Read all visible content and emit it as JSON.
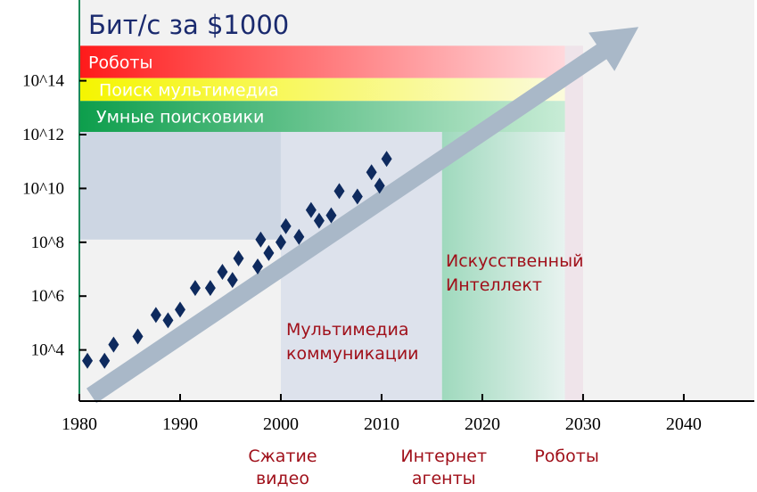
{
  "chart_data": {
    "type": "scatter",
    "title": "Бит/с за $1000",
    "xlabel": "",
    "ylabel": "",
    "x_ticks": [
      "1980",
      "1990",
      "2000",
      "2010",
      "2020",
      "2030",
      "2040"
    ],
    "y_ticks": [
      "10^4",
      "10^6",
      "10^8",
      "10^10",
      "10^12",
      "10^14"
    ],
    "xlim": [
      1980,
      2047
    ],
    "ylim_log10": [
      2.1,
      17.0
    ],
    "log_scale_y": true,
    "grid": false,
    "series": [
      {
        "points_log10": [
          [
            1980.8,
            3.6
          ],
          [
            1982.5,
            3.6
          ],
          [
            1983.4,
            4.2
          ],
          [
            1985.8,
            4.5
          ],
          [
            1987.6,
            5.3
          ],
          [
            1988.8,
            5.1
          ],
          [
            1990.0,
            5.5
          ],
          [
            1991.5,
            6.3
          ],
          [
            1993.0,
            6.3
          ],
          [
            1994.2,
            6.9
          ],
          [
            1995.2,
            6.6
          ],
          [
            1995.8,
            7.4
          ],
          [
            1997.7,
            7.1
          ],
          [
            1998.0,
            8.1
          ],
          [
            1998.8,
            7.6
          ],
          [
            2000.0,
            8.0
          ],
          [
            2000.5,
            8.6
          ],
          [
            2001.8,
            8.2
          ],
          [
            2003.0,
            9.2
          ],
          [
            2003.8,
            8.8
          ],
          [
            2005.0,
            9.0
          ],
          [
            2005.8,
            9.9
          ],
          [
            2007.6,
            9.7
          ],
          [
            2009.0,
            10.6
          ],
          [
            2009.8,
            10.1
          ],
          [
            2010.5,
            11.1
          ]
        ]
      }
    ],
    "trend_arrow": {
      "from": [
        1981.2,
        2.3
      ],
      "to": [
        2035.5,
        16.0
      ]
    },
    "bands": [
      {
        "label": "Роботы",
        "y_log10": [
          14.1,
          15.3
        ],
        "x_end": 2028.2,
        "color_start": "#ff1a1a",
        "color_end": "#ffd8dc"
      },
      {
        "label": "Поиск мультимедиа",
        "y_log10": [
          13.25,
          14.1
        ],
        "x_end": 2028.2,
        "color_start": "#f5f500",
        "color_end": "#fbfbdc"
      },
      {
        "label": "Умные поисковики",
        "y_log10": [
          12.1,
          13.25
        ],
        "x_end": 2028.2,
        "color_start": "#0d9e4c",
        "color_end": "#c8ecd6"
      }
    ],
    "regions": [
      {
        "label": [
          "Мультимедиа",
          "коммуникации"
        ],
        "x_start": 2000,
        "x_end": 2016,
        "color": "#dde2ec"
      },
      {
        "label": [
          "Искусственный",
          "Интеллект"
        ],
        "x_start": 2016,
        "x_end": 2028.2,
        "color": "#cdebdc"
      }
    ],
    "bottom_labels": [
      {
        "lines": [
          "Сжатие",
          "видео"
        ],
        "x": 2000
      },
      {
        "lines": [
          "Интернет",
          "агенты"
        ],
        "x": 2016
      },
      {
        "lines": [
          "Роботы"
        ],
        "x": 2028.2
      }
    ],
    "colors": {
      "points": "#0e2a5e",
      "arrow": "#a9b8c8",
      "title": "#1a2a6e",
      "region_text": "#a0101a",
      "background": "#f2f2f2"
    }
  }
}
